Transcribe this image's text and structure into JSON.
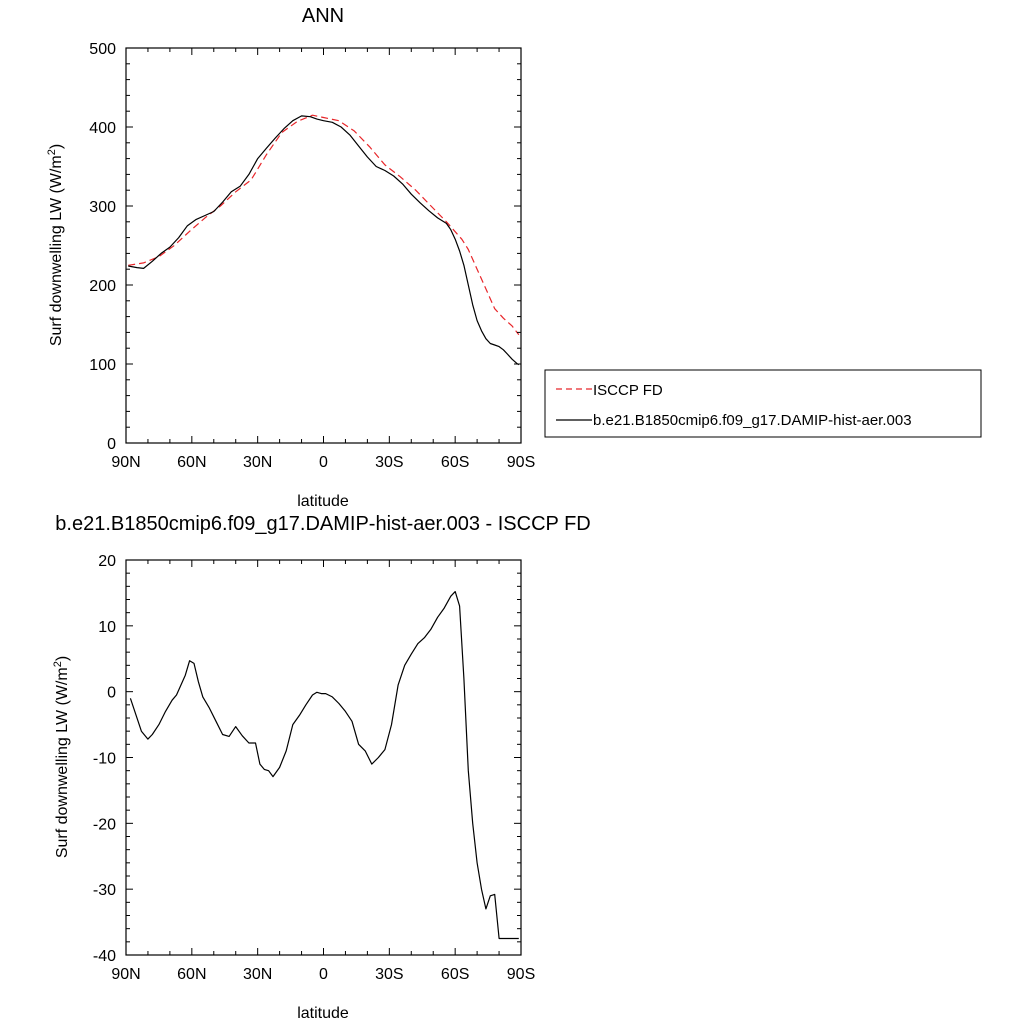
{
  "chart_data": [
    {
      "type": "line",
      "title": "ANN",
      "xlabel": "latitude",
      "ylabel": "Surf downwelling LW (W/m²)",
      "xlim": [
        90,
        -90
      ],
      "ylim": [
        0,
        500
      ],
      "x_ticks": [
        90,
        60,
        30,
        0,
        -30,
        -60,
        -90
      ],
      "x_tick_labels": [
        "90N",
        "60N",
        "30N",
        "0",
        "30S",
        "60S",
        "90S"
      ],
      "y_ticks": [
        0,
        100,
        200,
        300,
        400,
        500
      ],
      "y_tick_labels": [
        "0",
        "100",
        "200",
        "300",
        "400",
        "500"
      ],
      "legend_position": "right",
      "series": [
        {
          "name": "ISCCP FD",
          "color": "#e8262a",
          "dash": "dashed",
          "x": [
            89,
            82,
            75,
            68,
            61,
            54,
            47,
            40,
            33,
            26,
            19,
            12,
            5,
            0,
            -7,
            -14,
            -21,
            -28,
            -35,
            -42,
            -49,
            -56,
            -63,
            -66,
            -70,
            -74,
            -78,
            -82,
            -86,
            -89
          ],
          "y": [
            225,
            228,
            236,
            250,
            268,
            285,
            300,
            318,
            333,
            365,
            393,
            407,
            415,
            412,
            408,
            395,
            375,
            352,
            337,
            320,
            300,
            280,
            258,
            245,
            220,
            195,
            170,
            158,
            148,
            137
          ]
        },
        {
          "name": "b.e21.B1850cmip6.f09_g17.DAMIP-hist-aer.003",
          "color": "#000000",
          "dash": "solid",
          "x": [
            89,
            85,
            82,
            78,
            74,
            70,
            66,
            62,
            58,
            54,
            50,
            46,
            42,
            38,
            34,
            30,
            26,
            22,
            18,
            14,
            10,
            6,
            3,
            0,
            -4,
            -8,
            -12,
            -16,
            -20,
            -24,
            -28,
            -32,
            -36,
            -40,
            -44,
            -48,
            -52,
            -56,
            -58,
            -60,
            -62,
            -64,
            -66,
            -68,
            -70,
            -72,
            -74,
            -76,
            -78,
            -80,
            -82,
            -84,
            -86,
            -88,
            -89
          ],
          "y": [
            224,
            222,
            221,
            230,
            240,
            248,
            260,
            275,
            283,
            288,
            293,
            305,
            318,
            325,
            340,
            360,
            373,
            386,
            398,
            408,
            414,
            413,
            410,
            408,
            406,
            400,
            390,
            376,
            362,
            350,
            345,
            338,
            328,
            315,
            304,
            294,
            285,
            278,
            270,
            258,
            243,
            225,
            200,
            175,
            155,
            142,
            132,
            126,
            124,
            122,
            118,
            112,
            106,
            101,
            99
          ]
        }
      ]
    },
    {
      "type": "line",
      "title": "b.e21.B1850cmip6.f09_g17.DAMIP-hist-aer.003 - ISCCP FD",
      "xlabel": "latitude",
      "ylabel": "Surf downwelling LW (W/m²)",
      "xlim": [
        90,
        -90
      ],
      "ylim": [
        -40,
        20
      ],
      "x_ticks": [
        90,
        60,
        30,
        0,
        -30,
        -60,
        -90
      ],
      "x_tick_labels": [
        "90N",
        "60N",
        "30N",
        "0",
        "30S",
        "60S",
        "90S"
      ],
      "y_ticks": [
        -40,
        -30,
        -20,
        -10,
        0,
        10,
        20
      ],
      "y_tick_labels": [
        "-40",
        "-30",
        "-20",
        "-10",
        "0",
        "10",
        "20"
      ],
      "series": [
        {
          "color": "#000000",
          "dash": "solid",
          "x": [
            88,
            86,
            83,
            80,
            78,
            75,
            72,
            69,
            67,
            65,
            63,
            61,
            59,
            57,
            55,
            52,
            49,
            46,
            43,
            40,
            37,
            34,
            31,
            29,
            27,
            25,
            23,
            20,
            17,
            14,
            11,
            8,
            5,
            3,
            1,
            -1,
            -4,
            -7,
            -10,
            -13,
            -16,
            -19,
            -22,
            -25,
            -28,
            -31,
            -34,
            -37,
            -40,
            -43,
            -46,
            -49,
            -52,
            -55,
            -58,
            -60,
            -62,
            -64,
            -66,
            -68,
            -70,
            -72,
            -74,
            -76,
            -78,
            -80,
            -82,
            -84,
            -86,
            -88,
            -89
          ],
          "y": [
            -1,
            -3,
            -6,
            -7.2,
            -6.5,
            -5,
            -3,
            -1.3,
            -0.5,
            1,
            2.5,
            4.7,
            4.3,
            1.5,
            -0.8,
            -2.5,
            -4.5,
            -6.5,
            -6.8,
            -5.3,
            -6.7,
            -7.8,
            -7.8,
            -11,
            -11.8,
            -12,
            -12.9,
            -11.5,
            -9,
            -5,
            -3.6,
            -2,
            -0.5,
            -0.1,
            -0.3,
            -0.3,
            -0.8,
            -1.8,
            -3,
            -4.5,
            -8,
            -9,
            -11,
            -10,
            -8.8,
            -5,
            1,
            4,
            5.7,
            7.3,
            8.2,
            9.5,
            11.3,
            12.7,
            14.5,
            15.2,
            13,
            2,
            -12,
            -20,
            -26,
            -30,
            -33,
            -31,
            -30.8,
            -37.5,
            -37.5,
            -37.5,
            -37.5,
            -37.5,
            -37.5
          ]
        }
      ]
    }
  ]
}
